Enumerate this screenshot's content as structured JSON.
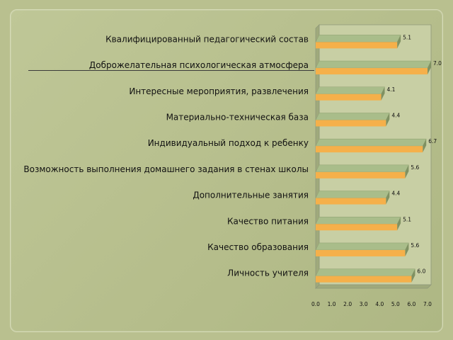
{
  "chart_data": {
    "type": "bar",
    "orientation": "horizontal",
    "bar_style": "3d",
    "categories": [
      "Квалифицированный педагогический состав",
      "Доброжелательная психологическая атмосфера",
      "Интересные мероприятия, развлечения",
      "Материально-техническая база",
      "Индивидуальный подход к ребенку",
      "Возможность выполнения домашнего задания в стенах школы",
      "Дополнительные занятия",
      "Качество питания",
      "Качество образования",
      "Личность учителя"
    ],
    "values": [
      5.1,
      7.0,
      4.1,
      4.4,
      6.7,
      5.6,
      4.4,
      5.1,
      5.6,
      6.0
    ],
    "value_labels": [
      "5.1",
      "7.0",
      "4.1",
      "4.4",
      "6.7",
      "5.6",
      "4.4",
      "5.1",
      "5.6",
      "6.0"
    ],
    "label_bullet": "",
    "x_ticks": [
      "0.0",
      "1.0",
      "2.0",
      "3.0",
      "4.0",
      "5.0",
      "6.0",
      "7.0"
    ],
    "xlim": [
      0,
      7
    ],
    "title": "",
    "xlabel": "",
    "ylabel": "",
    "grid": false,
    "legend": "none",
    "colors": {
      "bar_front": "#f5b04a",
      "bar_top": "#a9bd8a",
      "bar_side": "#7f9162",
      "wall_back": "#c8cfa4",
      "wall_floor": "#9fa97c",
      "axis": "#8f987a"
    }
  }
}
